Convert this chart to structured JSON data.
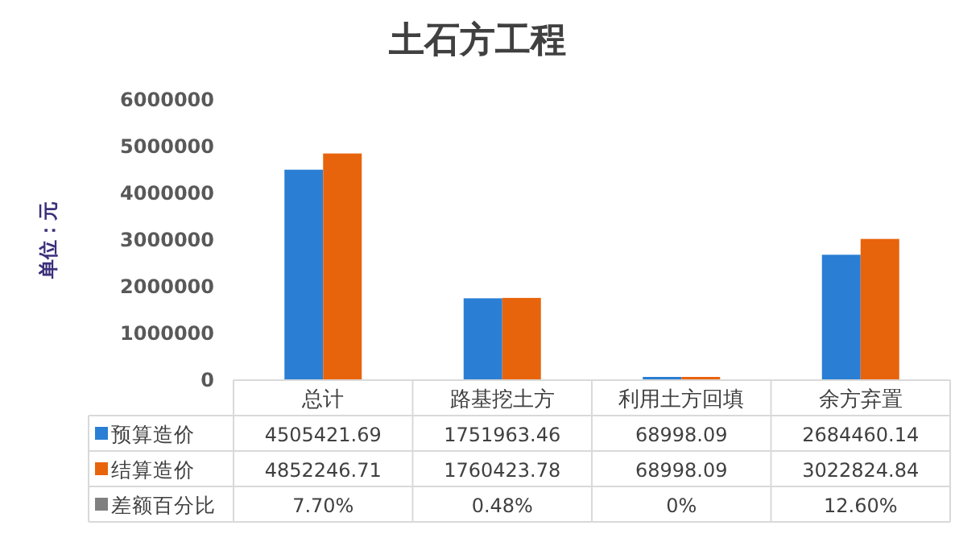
{
  "chart_data": {
    "type": "bar",
    "title": "土石方工程",
    "ylabel": "单位：元",
    "categories": [
      "总计",
      "路基挖土方",
      "利用土方回填",
      "余方弃置"
    ],
    "series": [
      {
        "name": "预算造价",
        "color": "#2a7fd4",
        "values": [
          4505421.69,
          1751963.46,
          68998.09,
          2684460.14
        ]
      },
      {
        "name": "结算造价",
        "color": "#e8640c",
        "values": [
          4852246.71,
          1760423.78,
          68998.09,
          3022824.84
        ]
      },
      {
        "name": "差额百分比",
        "color": "#808080",
        "values": [
          null,
          null,
          null,
          null
        ],
        "value_labels": [
          "7.70%",
          "0.48%",
          "0%",
          "12.60%"
        ]
      }
    ],
    "ylim": [
      0,
      6000000
    ],
    "yticks": [
      0,
      1000000,
      2000000,
      3000000,
      4000000,
      5000000,
      6000000
    ],
    "data_labels": true,
    "legend": "bottom"
  }
}
